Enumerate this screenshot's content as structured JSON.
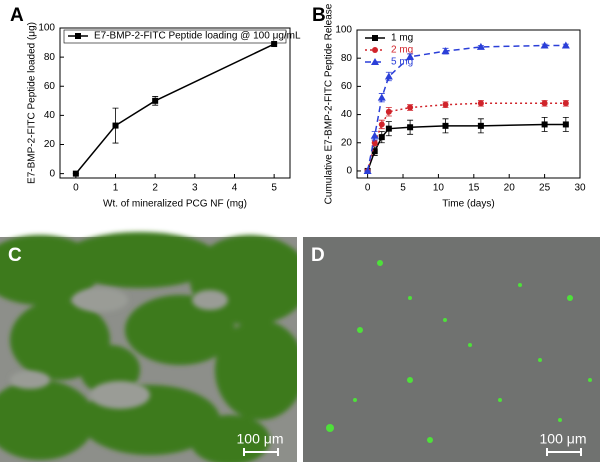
{
  "chart_data": [
    {
      "type": "line",
      "label": "A",
      "xlabel": "Wt. of mineralized PCG NF (mg)",
      "ylabel": "E7-BMP-2-FITC Peptide loaded (μg)",
      "x": [
        0,
        1,
        2,
        5
      ],
      "series": [
        {
          "name": "E7-BMP-2-FITC Peptide loading @ 100 μg/mL",
          "color": "#000000",
          "linestyle": "solid",
          "marker": "square",
          "values": [
            0,
            33,
            50,
            89
          ],
          "errors": [
            0,
            12,
            3,
            0
          ]
        }
      ],
      "xlim": [
        -0.4,
        5.4
      ],
      "xticks": [
        0,
        1,
        2,
        3,
        4,
        5
      ],
      "ylim": [
        -3,
        100
      ],
      "yticks": [
        0,
        20,
        40,
        60,
        80,
        100
      ],
      "legend": "upper left"
    },
    {
      "type": "line",
      "label": "B",
      "xlabel": "Time (days)",
      "ylabel": "Cumulative E7-BMP-2-FITC Peptide Release",
      "x": [
        0,
        1,
        2,
        3,
        6,
        11,
        16,
        25,
        28
      ],
      "series": [
        {
          "name": "1 mg",
          "color": "#000000",
          "linestyle": "solid",
          "marker": "square",
          "values": [
            0,
            14,
            24,
            30,
            31,
            32,
            32,
            33,
            33
          ],
          "errors": [
            0,
            3,
            4,
            5,
            5,
            5,
            5,
            5,
            5
          ]
        },
        {
          "name": "2 mg",
          "color": "#d0232a",
          "linestyle": "dotted",
          "marker": "circle",
          "values": [
            0,
            20,
            33,
            42,
            45,
            47,
            48,
            48,
            48
          ],
          "errors": [
            0,
            2,
            3,
            3,
            2,
            2,
            2,
            2,
            2
          ]
        },
        {
          "name": "5 mg",
          "color": "#2b3fd8",
          "linestyle": "dashed",
          "marker": "triangle",
          "values": [
            0,
            25,
            52,
            67,
            81,
            85,
            88,
            89,
            89
          ],
          "errors": [
            0,
            3,
            3,
            3,
            2,
            2,
            1,
            1,
            1
          ]
        }
      ],
      "xlim": [
        -1.5,
        30
      ],
      "xticks": [
        0,
        5,
        10,
        15,
        20,
        25,
        30
      ],
      "ylim": [
        -5,
        100
      ],
      "yticks": [
        0,
        20,
        40,
        60,
        80,
        100
      ],
      "legend": "upper left"
    }
  ],
  "panels": [
    {
      "label": "C",
      "scale_bar": "100 μm"
    },
    {
      "label": "D",
      "scale_bar": "100 μm"
    }
  ]
}
